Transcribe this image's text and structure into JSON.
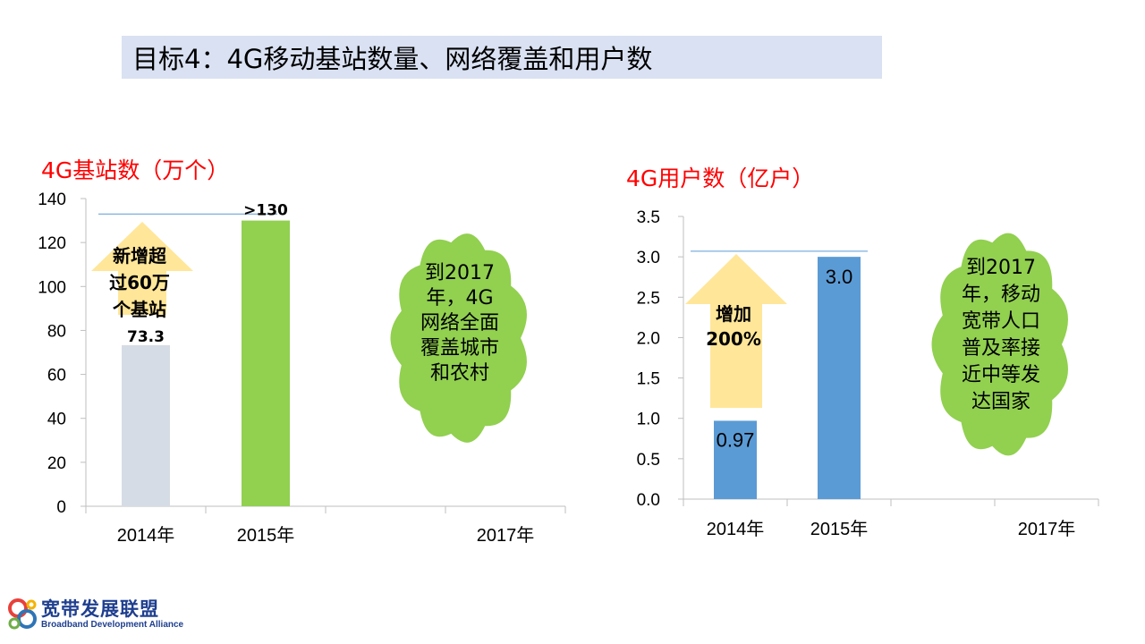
{
  "slide_title": "目标4：4G移动基站数量、网络覆盖和用户数",
  "chart_data": [
    {
      "type": "bar",
      "title": "4G基站数（万个）",
      "categories": [
        "2014年",
        "2015年",
        "",
        "2017年"
      ],
      "values": [
        73.3,
        130,
        null,
        null
      ],
      "data_labels": [
        "73.3",
        ">130",
        "",
        ""
      ],
      "bar_colors": [
        "#d6dce5",
        "#92d050"
      ],
      "ylim": [
        0,
        140
      ],
      "yticks": [
        "0",
        "20",
        "40",
        "60",
        "80",
        "100",
        "120",
        "140"
      ],
      "ytick_values": [
        0,
        20,
        40,
        60,
        80,
        100,
        120,
        140
      ],
      "reference_line": 133,
      "arrow_text": [
        "新增超",
        "过60万",
        "个基站"
      ],
      "cloud_text": [
        "到2017",
        "年，4G",
        "网络全面",
        "覆盖城市",
        "和农村"
      ],
      "arrow_color": "#ffe699",
      "cloud_color": "#92d050"
    },
    {
      "type": "bar",
      "title": "4G用户数（亿户）",
      "categories": [
        "2014年",
        "2015年",
        "",
        "2017年"
      ],
      "values": [
        0.97,
        3.0,
        null,
        null
      ],
      "data_labels": [
        "0.97",
        "3.0",
        "",
        ""
      ],
      "bar_colors": [
        "#5b9bd5",
        "#5b9bd5"
      ],
      "ylim": [
        0,
        3.5
      ],
      "yticks": [
        "0.0",
        "0.5",
        "1.0",
        "1.5",
        "2.0",
        "2.5",
        "3.0",
        "3.5"
      ],
      "ytick_values": [
        0,
        0.5,
        1.0,
        1.5,
        2.0,
        2.5,
        3.0,
        3.5
      ],
      "reference_line": 3.07,
      "arrow_text": [
        "增加",
        "200%"
      ],
      "cloud_text": [
        "到2017",
        "年，移动",
        "宽带人口",
        "普及率接",
        "近中等发",
        "达国家"
      ],
      "arrow_color": "#ffe699",
      "cloud_color": "#92d050"
    }
  ],
  "logo": {
    "name_cn": "宽带发展联盟",
    "name_en": "Broadband Development Alliance"
  }
}
